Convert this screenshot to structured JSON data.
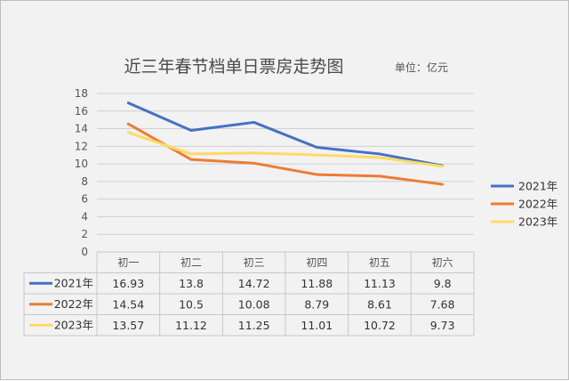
{
  "colors": {
    "background": "#f2f2f2",
    "series_2021": "#4472c4",
    "series_2022": "#ed7d31",
    "series_2023": "#ffd966",
    "grid": "#d0d0d0"
  },
  "chart_data": {
    "type": "line",
    "title": "近三年春节档单日票房走势图",
    "unit_label": "单位：亿元",
    "categories": [
      "初一",
      "初二",
      "初三",
      "初四",
      "初五",
      "初六"
    ],
    "ylim": [
      0,
      18
    ],
    "yticks": [
      "0",
      "2",
      "4",
      "6",
      "8",
      "10",
      "12",
      "14",
      "16",
      "18"
    ],
    "grid": true,
    "legend_position": "right",
    "series": [
      {
        "name": "2021年",
        "color": "#4472c4",
        "values": [
          16.93,
          13.8,
          14.72,
          11.88,
          11.13,
          9.8
        ],
        "labels": [
          "16.93",
          "13.8",
          "14.72",
          "11.88",
          "11.13",
          "9.8"
        ]
      },
      {
        "name": "2022年",
        "color": "#ed7d31",
        "values": [
          14.54,
          10.5,
          10.08,
          8.79,
          8.61,
          7.68
        ],
        "labels": [
          "14.54",
          "10.5",
          "10.08",
          "8.79",
          "8.61",
          "7.68"
        ]
      },
      {
        "name": "2023年",
        "color": "#ffd966",
        "values": [
          13.57,
          11.12,
          11.25,
          11.01,
          10.72,
          9.73
        ],
        "labels": [
          "13.57",
          "11.12",
          "11.25",
          "11.01",
          "10.72",
          "9.73"
        ]
      }
    ]
  }
}
